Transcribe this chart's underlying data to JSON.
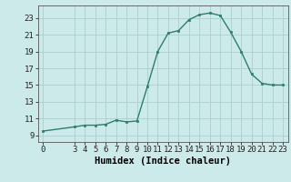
{
  "x": [
    0,
    3,
    4,
    5,
    6,
    7,
    8,
    9,
    10,
    11,
    12,
    13,
    14,
    15,
    16,
    17,
    18,
    19,
    20,
    21,
    22,
    23
  ],
  "y": [
    9.5,
    10.0,
    10.2,
    10.2,
    10.3,
    10.8,
    10.6,
    10.7,
    14.8,
    19.0,
    21.2,
    21.5,
    22.8,
    23.4,
    23.6,
    23.3,
    21.3,
    19.0,
    16.3,
    15.2,
    15.0,
    15.0
  ],
  "line_color": "#2e7d6e",
  "marker_color": "#2e7d6e",
  "bg_color": "#cceaea",
  "grid_color_major": "#aacfcf",
  "grid_color_minor": "#bbdddd",
  "xlabel": "Humidex (Indice chaleur)",
  "xticks": [
    0,
    3,
    4,
    5,
    6,
    7,
    8,
    9,
    10,
    11,
    12,
    13,
    14,
    15,
    16,
    17,
    18,
    19,
    20,
    21,
    22,
    23
  ],
  "yticks": [
    9,
    11,
    13,
    15,
    17,
    19,
    21,
    23
  ],
  "ylim": [
    8.2,
    24.5
  ],
  "xlim": [
    -0.5,
    23.5
  ],
  "tick_fontsize": 6.5,
  "label_fontsize": 7.5
}
